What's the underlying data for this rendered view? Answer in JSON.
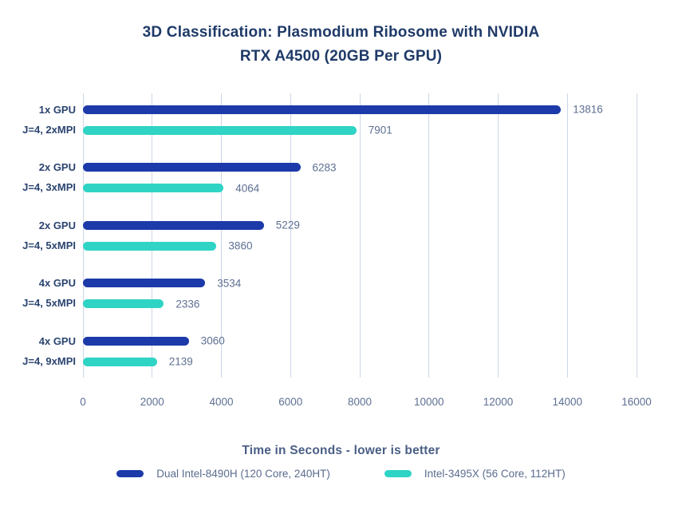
{
  "title_lines": [
    "3D Classification: Plasmodium Ribosome with NVIDIA",
    "RTX A4500 (20GB Per GPU)"
  ],
  "colors": {
    "blue": "#1c3aa9",
    "teal": "#2fd4c5",
    "gridline": "#ccd6e8",
    "title_text": "#1f3a68",
    "category_text": "#2a4470",
    "value_text": "#5d6f92",
    "axis_label_text": "#4a5f85"
  },
  "chart_data": {
    "type": "bar",
    "orientation": "horizontal",
    "title": "3D Classification: Plasmodium Ribosome with NVIDIA RTX A4500 (20GB Per GPU)",
    "xlabel": "Time in Seconds - lower is better",
    "ylabel": "",
    "xlim": [
      0,
      16000
    ],
    "xticks": [
      0,
      2000,
      4000,
      6000,
      8000,
      10000,
      12000,
      14000,
      16000
    ],
    "grid": true,
    "legend_position": "bottom",
    "categories": [
      [
        "1x GPU",
        "J=4, 2xMPI"
      ],
      [
        "2x GPU",
        "J=4, 3xMPI"
      ],
      [
        "2x GPU",
        "J=4, 5xMPI"
      ],
      [
        "4x GPU",
        "J=4, 5xMPI"
      ],
      [
        "4x GPU",
        "J=4, 9xMPI"
      ]
    ],
    "series": [
      {
        "name": "Dual Intel-8490H (120 Core, 240HT)",
        "color_key": "blue",
        "values": [
          13816,
          6283,
          5229,
          3534,
          3060
        ]
      },
      {
        "name": "Intel-3495X (56 Core, 112HT)",
        "color_key": "teal",
        "values": [
          7901,
          4064,
          3860,
          2336,
          2139
        ]
      }
    ]
  }
}
